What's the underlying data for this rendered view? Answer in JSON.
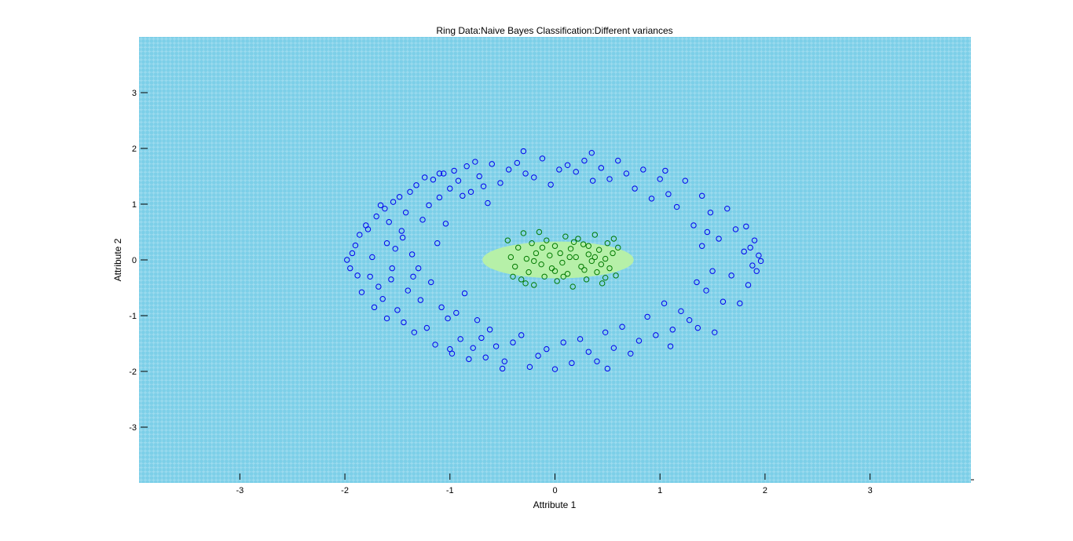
{
  "chart_data": {
    "type": "scatter",
    "title": "Ring Data:Naive Bayes Classification:Different variances",
    "xlabel": "Attribute 1",
    "ylabel": "Attribute 2",
    "xlim": [
      -3.96,
      3.96
    ],
    "ylim": [
      -4.0,
      4.0
    ],
    "x_ticks": [
      {
        "value": -3,
        "label": "-3"
      },
      {
        "value": -2,
        "label": "-2"
      },
      {
        "value": -1,
        "label": "-1"
      },
      {
        "value": 0,
        "label": "0"
      },
      {
        "value": 1,
        "label": "1"
      },
      {
        "value": 2,
        "label": "2"
      },
      {
        "value": 3,
        "label": "3"
      }
    ],
    "y_ticks": [
      {
        "value": 3,
        "label": "3"
      },
      {
        "value": 2,
        "label": "2"
      },
      {
        "value": 1,
        "label": "1"
      },
      {
        "value": 0,
        "label": "0"
      },
      {
        "value": -1,
        "label": "-1"
      },
      {
        "value": -2,
        "label": "-2"
      },
      {
        "value": -3,
        "label": "-3"
      }
    ],
    "grid": false,
    "legend": "none",
    "decision_regions": {
      "outer_color": "#7ccfe8",
      "outer_mark_color": "#9fdcef",
      "inner_color": "#b6f0a8",
      "inner_region": {
        "type": "ellipse",
        "center": [
          0.03,
          0.0
        ],
        "semi_axes": [
          0.72,
          0.33
        ]
      }
    },
    "series": [
      {
        "class": "outer ring",
        "marker": "circle",
        "color": "#0000ee",
        "points": [
          [
            -1.98,
            0.0
          ],
          [
            -1.95,
            -0.15
          ],
          [
            -1.93,
            0.12
          ],
          [
            -1.9,
            0.26
          ],
          [
            -1.88,
            -0.28
          ],
          [
            -1.86,
            0.45
          ],
          [
            -1.84,
            -0.58
          ],
          [
            -1.8,
            0.62
          ],
          [
            -1.78,
            0.55
          ],
          [
            -1.76,
            -0.3
          ],
          [
            -1.74,
            0.05
          ],
          [
            -1.72,
            -0.85
          ],
          [
            -1.7,
            0.78
          ],
          [
            -1.68,
            -0.48
          ],
          [
            -1.66,
            0.98
          ],
          [
            -1.64,
            -0.7
          ],
          [
            -1.62,
            0.92
          ],
          [
            -1.6,
            -1.05
          ],
          [
            -1.58,
            0.68
          ],
          [
            -1.56,
            -0.35
          ],
          [
            -1.54,
            1.04
          ],
          [
            -1.52,
            0.2
          ],
          [
            -1.5,
            -0.9
          ],
          [
            -1.48,
            1.13
          ],
          [
            -1.46,
            0.52
          ],
          [
            -1.44,
            -1.12
          ],
          [
            -1.42,
            0.85
          ],
          [
            -1.4,
            -0.55
          ],
          [
            -1.38,
            1.22
          ],
          [
            -1.36,
            0.1
          ],
          [
            -1.34,
            -1.3
          ],
          [
            -1.32,
            1.34
          ],
          [
            -1.3,
            -0.15
          ],
          [
            -1.28,
            -0.72
          ],
          [
            -1.26,
            0.72
          ],
          [
            -1.24,
            1.48
          ],
          [
            -1.22,
            -1.22
          ],
          [
            -1.2,
            0.98
          ],
          [
            -1.18,
            -0.4
          ],
          [
            -1.16,
            1.44
          ],
          [
            -1.14,
            -1.52
          ],
          [
            -1.12,
            0.3
          ],
          [
            -1.1,
            1.12
          ],
          [
            -1.08,
            -0.85
          ],
          [
            -1.06,
            1.55
          ],
          [
            -1.04,
            0.65
          ],
          [
            -1.02,
            -1.05
          ],
          [
            -1.0,
            1.28
          ],
          [
            -0.98,
            -1.68
          ],
          [
            -0.96,
            1.6
          ],
          [
            -0.94,
            -0.95
          ],
          [
            -0.92,
            1.42
          ],
          [
            -0.9,
            -1.42
          ],
          [
            -0.88,
            1.15
          ],
          [
            -0.86,
            -0.6
          ],
          [
            -0.84,
            1.68
          ],
          [
            -0.82,
            -1.78
          ],
          [
            -0.8,
            1.22
          ],
          [
            -0.78,
            -1.58
          ],
          [
            -0.76,
            1.76
          ],
          [
            -0.74,
            -1.08
          ],
          [
            -0.72,
            1.5
          ],
          [
            -0.7,
            -1.4
          ],
          [
            -0.68,
            1.32
          ],
          [
            -0.66,
            -1.75
          ],
          [
            -0.64,
            1.02
          ],
          [
            -0.62,
            -1.25
          ],
          [
            -0.6,
            1.72
          ],
          [
            -0.56,
            -1.55
          ],
          [
            -0.52,
            1.38
          ],
          [
            -0.48,
            -1.82
          ],
          [
            -0.44,
            1.62
          ],
          [
            -0.4,
            -1.48
          ],
          [
            -0.36,
            1.74
          ],
          [
            -0.32,
            -1.35
          ],
          [
            -0.28,
            1.55
          ],
          [
            -0.24,
            -1.92
          ],
          [
            -0.2,
            1.48
          ],
          [
            -0.16,
            -1.72
          ],
          [
            -0.12,
            1.82
          ],
          [
            -0.08,
            -1.6
          ],
          [
            -0.04,
            1.35
          ],
          [
            0.0,
            -1.96
          ],
          [
            0.04,
            1.62
          ],
          [
            0.08,
            -1.48
          ],
          [
            0.12,
            1.7
          ],
          [
            0.16,
            -1.85
          ],
          [
            0.2,
            1.58
          ],
          [
            0.24,
            -1.42
          ],
          [
            0.28,
            1.78
          ],
          [
            0.32,
            -1.65
          ],
          [
            0.36,
            1.42
          ],
          [
            0.4,
            -1.82
          ],
          [
            0.44,
            1.65
          ],
          [
            0.48,
            -1.3
          ],
          [
            0.52,
            1.45
          ],
          [
            0.56,
            -1.58
          ],
          [
            0.6,
            1.78
          ],
          [
            0.64,
            -1.2
          ],
          [
            0.68,
            1.55
          ],
          [
            0.72,
            -1.68
          ],
          [
            0.76,
            1.28
          ],
          [
            0.8,
            -1.45
          ],
          [
            0.84,
            1.62
          ],
          [
            0.88,
            -1.02
          ],
          [
            0.92,
            1.1
          ],
          [
            0.96,
            -1.35
          ],
          [
            1.0,
            1.45
          ],
          [
            1.04,
            -0.78
          ],
          [
            1.08,
            1.18
          ],
          [
            1.12,
            -1.25
          ],
          [
            1.16,
            0.95
          ],
          [
            1.2,
            -0.92
          ],
          [
            1.24,
            1.42
          ],
          [
            1.28,
            -1.08
          ],
          [
            1.32,
            0.62
          ],
          [
            1.36,
            -1.22
          ],
          [
            1.4,
            1.15
          ],
          [
            1.44,
            -0.55
          ],
          [
            1.48,
            0.85
          ],
          [
            1.52,
            -1.3
          ],
          [
            1.56,
            0.38
          ],
          [
            1.6,
            -0.75
          ],
          [
            1.64,
            0.92
          ],
          [
            1.68,
            -0.28
          ],
          [
            1.72,
            0.55
          ],
          [
            1.76,
            -0.78
          ],
          [
            1.8,
            0.15
          ],
          [
            1.82,
            0.6
          ],
          [
            1.84,
            -0.45
          ],
          [
            1.86,
            0.22
          ],
          [
            1.88,
            -0.1
          ],
          [
            1.9,
            0.35
          ],
          [
            1.92,
            -0.2
          ],
          [
            1.94,
            0.08
          ],
          [
            1.96,
            -0.02
          ],
          [
            -1.6,
            0.3
          ],
          [
            -1.55,
            -0.15
          ],
          [
            -1.45,
            0.4
          ],
          [
            -1.35,
            -0.3
          ],
          [
            1.4,
            0.25
          ],
          [
            1.5,
            -0.2
          ],
          [
            1.45,
            0.5
          ],
          [
            1.35,
            -0.4
          ],
          [
            -0.5,
            -1.95
          ],
          [
            0.5,
            -1.95
          ],
          [
            -0.3,
            1.95
          ],
          [
            0.35,
            1.92
          ],
          [
            -1.0,
            -1.6
          ],
          [
            1.05,
            1.6
          ],
          [
            -1.1,
            1.55
          ],
          [
            1.1,
            -1.55
          ]
        ]
      },
      {
        "class": "inner core",
        "marker": "circle",
        "color": "#007a00",
        "points": [
          [
            -0.45,
            0.35
          ],
          [
            -0.42,
            0.05
          ],
          [
            -0.38,
            -0.12
          ],
          [
            -0.35,
            0.22
          ],
          [
            -0.32,
            -0.35
          ],
          [
            -0.3,
            0.48
          ],
          [
            -0.27,
            0.02
          ],
          [
            -0.25,
            -0.22
          ],
          [
            -0.22,
            0.3
          ],
          [
            -0.2,
            -0.45
          ],
          [
            -0.18,
            0.12
          ],
          [
            -0.15,
            0.5
          ],
          [
            -0.13,
            -0.08
          ],
          [
            -0.1,
            -0.3
          ],
          [
            -0.08,
            0.35
          ],
          [
            -0.05,
            0.08
          ],
          [
            -0.03,
            -0.15
          ],
          [
            0.0,
            0.25
          ],
          [
            0.02,
            -0.38
          ],
          [
            0.05,
            0.12
          ],
          [
            0.07,
            -0.05
          ],
          [
            0.1,
            0.42
          ],
          [
            0.12,
            -0.25
          ],
          [
            0.15,
            0.2
          ],
          [
            0.17,
            -0.48
          ],
          [
            0.2,
            0.05
          ],
          [
            0.22,
            0.38
          ],
          [
            0.25,
            -0.12
          ],
          [
            0.27,
            0.28
          ],
          [
            0.3,
            -0.35
          ],
          [
            0.32,
            0.1
          ],
          [
            0.35,
            -0.02
          ],
          [
            0.38,
            0.45
          ],
          [
            0.4,
            -0.22
          ],
          [
            0.42,
            0.18
          ],
          [
            0.45,
            -0.42
          ],
          [
            0.48,
            0.02
          ],
          [
            0.5,
            0.3
          ],
          [
            0.52,
            -0.15
          ],
          [
            0.55,
            0.12
          ],
          [
            0.58,
            -0.28
          ],
          [
            0.6,
            0.22
          ],
          [
            -0.4,
            -0.3
          ],
          [
            -0.28,
            -0.42
          ],
          [
            -0.12,
            0.22
          ],
          [
            0.08,
            -0.3
          ],
          [
            0.18,
            0.32
          ],
          [
            0.28,
            -0.18
          ],
          [
            0.38,
            0.05
          ],
          [
            0.48,
            -0.32
          ],
          [
            -0.2,
            -0.02
          ],
          [
            0.0,
            -0.2
          ],
          [
            0.14,
            0.05
          ],
          [
            0.32,
            0.25
          ],
          [
            0.44,
            -0.08
          ],
          [
            0.56,
            0.38
          ]
        ]
      }
    ]
  }
}
